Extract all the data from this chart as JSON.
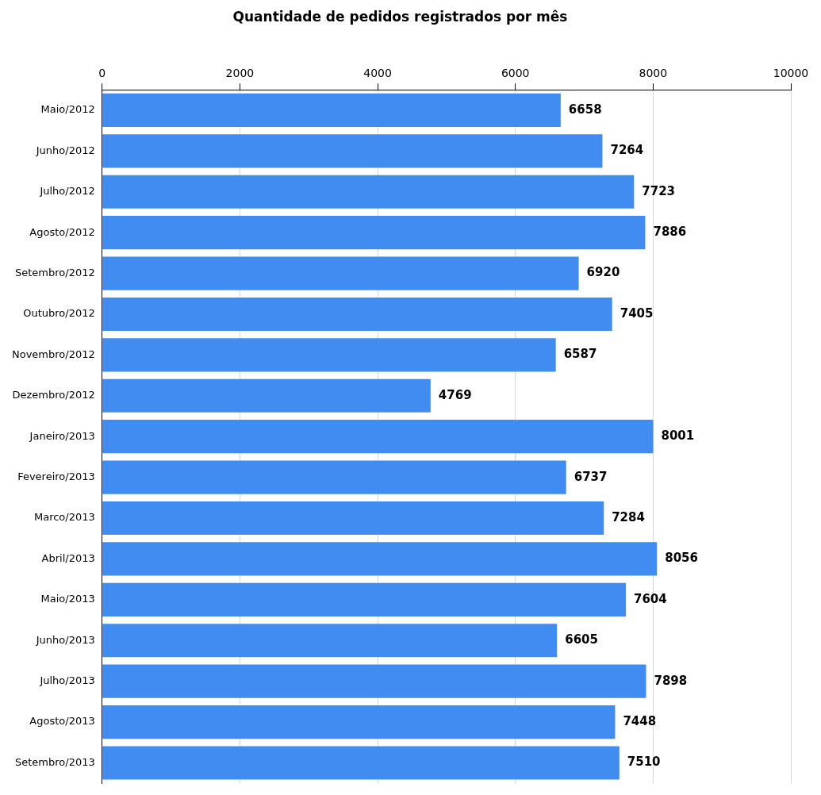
{
  "chart_data": {
    "type": "bar",
    "orientation": "horizontal",
    "title": "Quantidade de pedidos registrados por mês",
    "categories": [
      "Maio/2012",
      "Junho/2012",
      "Julho/2012",
      "Agosto/2012",
      "Setembro/2012",
      "Outubro/2012",
      "Novembro/2012",
      "Dezembro/2012",
      "Janeiro/2013",
      "Fevereiro/2013",
      "Marco/2013",
      "Abril/2013",
      "Maio/2013",
      "Junho/2013",
      "Julho/2013",
      "Agosto/2013",
      "Setembro/2013"
    ],
    "values": [
      6658,
      7264,
      7723,
      7886,
      6920,
      7405,
      6587,
      4769,
      8001,
      6737,
      7284,
      8056,
      7604,
      6605,
      7898,
      7448,
      7510
    ],
    "color": "#418cf0",
    "xlim": [
      0,
      10000
    ],
    "xticks": [
      0,
      2000,
      4000,
      6000,
      8000,
      10000
    ],
    "grid": "x",
    "data_labels": true,
    "legend": false
  }
}
